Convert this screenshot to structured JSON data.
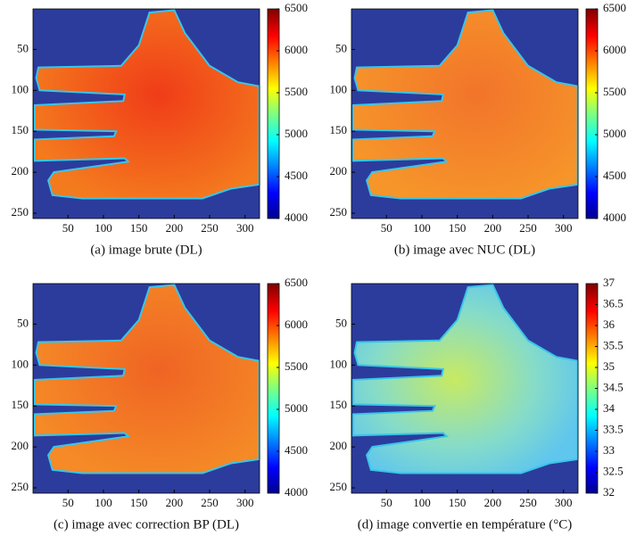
{
  "chart_data": [
    {
      "type": "image",
      "caption": "(a) image brute (DL)",
      "xlim": [
        0.5,
        320.5
      ],
      "xticks": [
        50,
        100,
        150,
        200,
        250,
        300
      ],
      "ylim": [
        0.5,
        256.5
      ],
      "yticks": [
        50,
        100,
        150,
        200,
        250
      ],
      "colorbar_lim": [
        4000,
        6500
      ],
      "colorbar_ticks": [
        4000,
        4500,
        5000,
        5500,
        6000,
        6500
      ]
    },
    {
      "type": "image",
      "caption": "(b) image avec NUC (DL)",
      "xlim": [
        0.5,
        320.5
      ],
      "xticks": [
        50,
        100,
        150,
        200,
        250,
        300
      ],
      "ylim": [
        0.5,
        256.5
      ],
      "yticks": [
        50,
        100,
        150,
        200,
        250
      ],
      "colorbar_lim": [
        4000,
        6500
      ],
      "colorbar_ticks": [
        4000,
        4500,
        5000,
        5500,
        6000,
        6500
      ]
    },
    {
      "type": "image",
      "caption": "(c) image avec correction BP (DL)",
      "xlim": [
        0.5,
        320.5
      ],
      "xticks": [
        50,
        100,
        150,
        200,
        250,
        300
      ],
      "ylim": [
        0.5,
        256.5
      ],
      "yticks": [
        50,
        100,
        150,
        200,
        250
      ],
      "colorbar_lim": [
        4000,
        6500
      ],
      "colorbar_ticks": [
        4000,
        4500,
        5000,
        5500,
        6000,
        6500
      ]
    },
    {
      "type": "image",
      "caption": "(d) image convertie en température (°C)",
      "xlim": [
        0.5,
        320.5
      ],
      "xticks": [
        50,
        100,
        150,
        200,
        250,
        300
      ],
      "ylim": [
        0.5,
        256.5
      ],
      "yticks": [
        50,
        100,
        150,
        200,
        250
      ],
      "colorbar_lim": [
        32,
        37
      ],
      "colorbar_ticks": [
        32,
        32.5,
        33,
        33.5,
        34,
        34.5,
        35,
        35.5,
        36,
        36.5,
        37
      ]
    }
  ]
}
